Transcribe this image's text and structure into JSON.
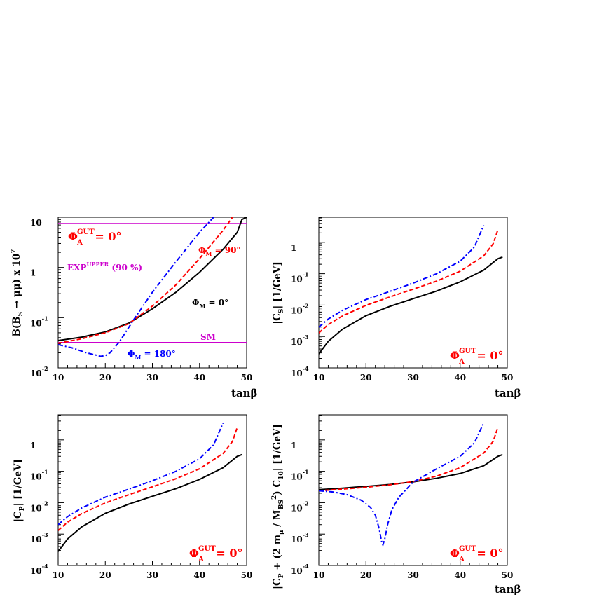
{
  "colors": {
    "black": "#000000",
    "red": "#ff0000",
    "blue": "#0000ff",
    "magenta": "#cc00cc"
  },
  "chart_data": [
    {
      "type": "line",
      "xlabel": "tanβ",
      "ylabel": "B(B_S → μμ) x 10^7",
      "xlim": [
        10,
        50
      ],
      "ylog": true,
      "ylim_decades": [
        -2,
        1
      ],
      "xticks": [
        "10",
        "20",
        "30",
        "40",
        "50"
      ],
      "yticks": [
        {
          "b": "10",
          "e": "-2"
        },
        {
          "b": "10",
          "e": "-1"
        },
        {
          "b": "1",
          "e": ""
        },
        {
          "b": "10",
          "e": ""
        }
      ],
      "annotations": {
        "phi_gut": "Φ_A^GUT = 0°",
        "exp": "EXP^UPPER (90 %)",
        "sm": "SM",
        "phi90": "Φ_M = 90°",
        "phi0": "Φ_M = 0°",
        "phi180": "Φ_M = 180°"
      },
      "hlines": [
        {
          "name": "EXP^UPPER (90 %)",
          "y": 7.5,
          "color": "#cc00cc"
        },
        {
          "name": "SM",
          "y": 0.032,
          "color": "#cc00cc"
        }
      ],
      "series": [
        {
          "color": "#000000",
          "style": "solid",
          "x": [
            10,
            15,
            20,
            25,
            30,
            35,
            40,
            45,
            48,
            49,
            50
          ],
          "y": [
            0.035,
            0.041,
            0.052,
            0.078,
            0.15,
            0.32,
            0.8,
            2.3,
            5.0,
            9.0,
            10.0
          ]
        },
        {
          "color": "#ff0000",
          "style": "dashed",
          "x": [
            10,
            15,
            20,
            25,
            30,
            35,
            40,
            45,
            47
          ],
          "y": [
            0.031,
            0.038,
            0.05,
            0.076,
            0.17,
            0.45,
            1.5,
            5.5,
            10.0
          ]
        },
        {
          "color": "#0000ff",
          "style": "dashdot",
          "x": [
            10,
            13,
            16,
            18,
            19,
            20,
            21,
            23,
            26,
            30,
            35,
            40,
            43
          ],
          "y": [
            0.029,
            0.025,
            0.02,
            0.018,
            0.017,
            0.0175,
            0.02,
            0.033,
            0.09,
            0.32,
            1.3,
            5.0,
            10.0
          ]
        }
      ]
    },
    {
      "type": "line",
      "xlabel": "tanβ",
      "ylabel": "|C_S| [1/GeV]",
      "xlim": [
        10,
        50
      ],
      "ylog": true,
      "ylim_decades": [
        -4,
        0.8
      ],
      "xticks": [
        "10",
        "20",
        "30",
        "40",
        "50"
      ],
      "yticks": [
        {
          "b": "10",
          "e": "-4"
        },
        {
          "b": "10",
          "e": "-3"
        },
        {
          "b": "10",
          "e": "-2"
        },
        {
          "b": "10",
          "e": "-1"
        },
        {
          "b": "1",
          "e": ""
        }
      ],
      "annotations": {
        "phi_gut": "Φ_A^GUT = 0°"
      },
      "series": [
        {
          "color": "#000000",
          "style": "solid",
          "x": [
            10,
            12,
            15,
            20,
            25,
            30,
            35,
            40,
            45,
            48,
            49
          ],
          "y": [
            0.00028,
            0.0007,
            0.0017,
            0.0046,
            0.009,
            0.016,
            0.028,
            0.055,
            0.13,
            0.3,
            0.34
          ]
        },
        {
          "color": "#ff0000",
          "style": "dashed",
          "x": [
            10,
            12,
            15,
            20,
            25,
            30,
            35,
            40,
            45,
            47,
            48
          ],
          "y": [
            0.0013,
            0.0024,
            0.0045,
            0.0098,
            0.018,
            0.032,
            0.058,
            0.12,
            0.37,
            0.9,
            2.5
          ]
        },
        {
          "color": "#0000ff",
          "style": "dashdot",
          "x": [
            10,
            12,
            15,
            20,
            25,
            30,
            35,
            40,
            43,
            45
          ],
          "y": [
            0.002,
            0.0036,
            0.0068,
            0.015,
            0.027,
            0.05,
            0.1,
            0.25,
            0.7,
            3.5
          ]
        }
      ]
    },
    {
      "type": "line",
      "xlabel": "",
      "ylabel": "|C_P| [1/GeV]",
      "xlim": [
        10,
        50
      ],
      "ylog": true,
      "ylim_decades": [
        -4,
        0.8
      ],
      "xticks": [
        "10",
        "20",
        "30",
        "40",
        "50"
      ],
      "yticks": [
        {
          "b": "10",
          "e": "-4"
        },
        {
          "b": "10",
          "e": "-3"
        },
        {
          "b": "10",
          "e": "-2"
        },
        {
          "b": "10",
          "e": "-1"
        },
        {
          "b": "1",
          "e": ""
        }
      ],
      "annotations": {
        "phi_gut": "Φ_A^GUT = 0°"
      },
      "series": [
        {
          "color": "#000000",
          "style": "solid",
          "x": [
            10,
            12,
            15,
            20,
            25,
            30,
            35,
            40,
            45,
            48,
            49
          ],
          "y": [
            0.00028,
            0.0007,
            0.0017,
            0.0046,
            0.009,
            0.016,
            0.028,
            0.055,
            0.13,
            0.3,
            0.34
          ]
        },
        {
          "color": "#ff0000",
          "style": "dashed",
          "x": [
            10,
            12,
            15,
            20,
            25,
            30,
            35,
            40,
            45,
            47,
            48
          ],
          "y": [
            0.0013,
            0.0024,
            0.0045,
            0.0098,
            0.018,
            0.032,
            0.058,
            0.12,
            0.37,
            0.9,
            2.5
          ]
        },
        {
          "color": "#0000ff",
          "style": "dashdot",
          "x": [
            10,
            12,
            15,
            20,
            25,
            30,
            35,
            40,
            43,
            45
          ],
          "y": [
            0.002,
            0.0036,
            0.0068,
            0.015,
            0.027,
            0.05,
            0.1,
            0.25,
            0.7,
            3.5
          ]
        }
      ]
    },
    {
      "type": "line",
      "xlabel": "tanβ",
      "ylabel": "|C_P + (2 m_μ / M_BS^2) C_10| [1/GeV]",
      "xlim": [
        10,
        50
      ],
      "ylog": true,
      "ylim_decades": [
        -4,
        0.8
      ],
      "xticks": [
        "10",
        "20",
        "30",
        "40",
        "50"
      ],
      "yticks": [
        {
          "b": "10",
          "e": "-4"
        },
        {
          "b": "10",
          "e": "-3"
        },
        {
          "b": "10",
          "e": "-2"
        },
        {
          "b": "10",
          "e": "-1"
        },
        {
          "b": "1",
          "e": ""
        }
      ],
      "annotations": {
        "phi_gut": "Φ_A^GUT = 0°"
      },
      "series": [
        {
          "color": "#000000",
          "style": "solid",
          "x": [
            10,
            15,
            20,
            25,
            30,
            35,
            40,
            45,
            48,
            49
          ],
          "y": [
            0.026,
            0.029,
            0.033,
            0.038,
            0.046,
            0.06,
            0.085,
            0.15,
            0.3,
            0.34
          ]
        },
        {
          "color": "#ff0000",
          "style": "dashed",
          "x": [
            10,
            15,
            20,
            25,
            30,
            35,
            40,
            45,
            47,
            48
          ],
          "y": [
            0.024,
            0.027,
            0.031,
            0.037,
            0.047,
            0.07,
            0.13,
            0.38,
            0.9,
            2.5
          ]
        },
        {
          "color": "#0000ff",
          "style": "dashdot",
          "x": [
            10,
            13,
            16,
            19,
            21,
            22,
            22.8,
            23.3,
            23.6,
            24.0,
            24.6,
            25.5,
            27,
            30,
            35,
            40,
            43,
            45
          ],
          "y": [
            0.024,
            0.022,
            0.018,
            0.012,
            0.007,
            0.004,
            0.0015,
            0.0006,
            0.00045,
            0.0007,
            0.002,
            0.006,
            0.015,
            0.045,
            0.12,
            0.3,
            0.8,
            3.5
          ]
        }
      ]
    }
  ]
}
